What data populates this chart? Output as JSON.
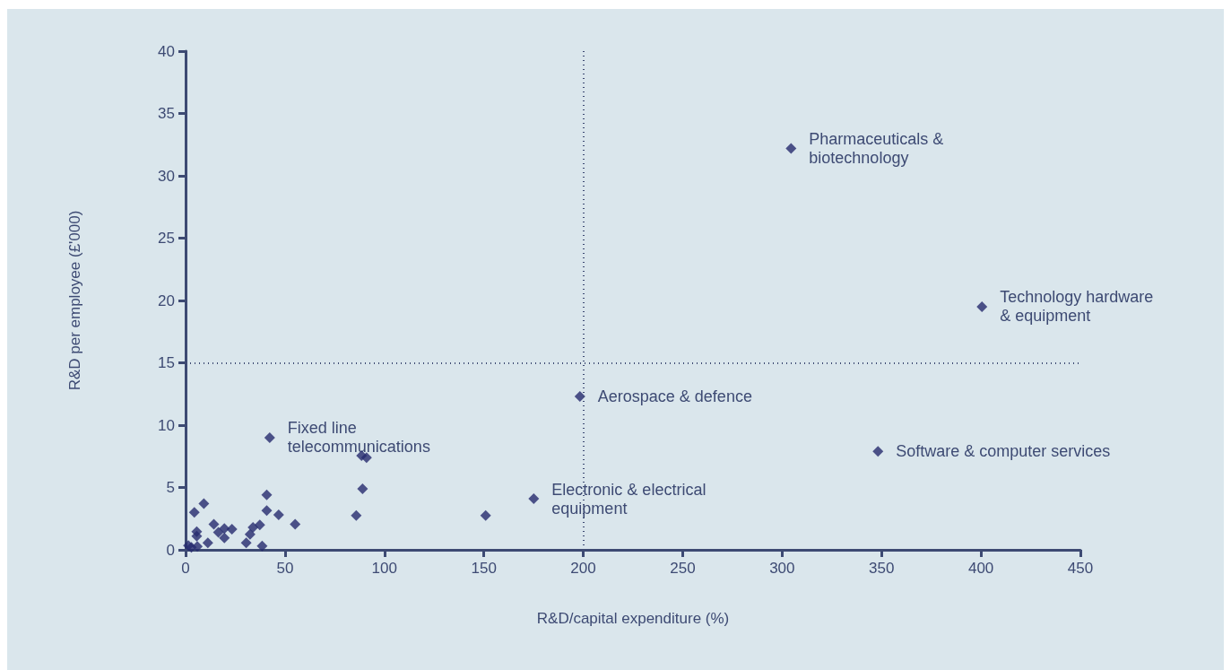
{
  "chart_data": {
    "type": "scatter",
    "xlabel": "R&D/capital expenditure (%)",
    "ylabel": "R&D per employee (£'000)",
    "x": [
      42.3,
      40.8,
      40.8,
      46.8,
      55.1,
      9.2,
      4.4,
      5.6,
      5.6,
      14.2,
      16.5,
      19.5,
      23.3,
      19.5,
      11.2,
      2.9,
      5.9,
      1.4,
      30.5,
      32.4,
      33.9,
      37.3,
      38.5,
      88.5,
      91,
      89,
      85.8,
      150.9,
      175.1,
      198.3,
      304.5,
      400.5,
      348.2
    ],
    "values": [
      9.0,
      4.4,
      3.15,
      2.8,
      2.05,
      3.7,
      3.0,
      1.45,
      1.1,
      2.05,
      1.4,
      1.7,
      1.65,
      0.95,
      0.55,
      0.2,
      0.27,
      0.35,
      0.55,
      1.25,
      1.8,
      2.0,
      0.3,
      7.55,
      7.4,
      4.9,
      2.75,
      2.75,
      4.1,
      12.3,
      32.2,
      19.5,
      7.9
    ],
    "color": "#262a6e",
    "marker": "diamond",
    "grid": false,
    "xlim": [
      0,
      450
    ],
    "xticks": [
      0,
      50,
      100,
      150,
      200,
      250,
      300,
      350,
      400,
      450
    ],
    "ylim": [
      0,
      40
    ],
    "yticks": [
      0,
      5,
      10,
      15,
      20,
      25,
      30,
      35,
      40
    ],
    "ref_lines": [
      {
        "axis": "x",
        "value": 200,
        "color": "#3d4a73",
        "line_style": "dotted"
      },
      {
        "axis": "y",
        "value": 15,
        "color": "#3d4a73",
        "line_style": "dotted"
      }
    ],
    "annotations": [
      {
        "text": "Pharmaceuticals &\nbiotechnology",
        "x": 304.5,
        "y": 32.2
      },
      {
        "text": "Technology hardware\n& equipment",
        "x": 400.5,
        "y": 19.5
      },
      {
        "text": "Aerospace & defence",
        "x": 198.3,
        "y": 12.3
      },
      {
        "text": "Software & computer services",
        "x": 348.2,
        "y": 7.9
      },
      {
        "text": "Fixed line\ntelecommunications",
        "x": 42.3,
        "y": 9.0
      },
      {
        "text": "Electronic & electrical\nequipment",
        "x": 175.1,
        "y": 4.1
      }
    ]
  }
}
